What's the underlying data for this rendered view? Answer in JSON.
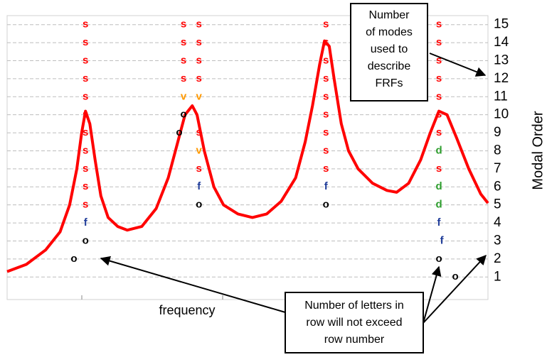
{
  "chart_data": {
    "type": "stabilization",
    "y_axis_label": "Modal Order",
    "x_axis_label": "frequency",
    "xlim": [
      0,
      100
    ],
    "ylim": [
      -0.25,
      15.5
    ],
    "yticks": [
      1,
      2,
      3,
      4,
      5,
      6,
      7,
      8,
      9,
      10,
      11,
      12,
      13,
      14,
      15
    ],
    "grid": true,
    "frf": {
      "color": "#ff0000",
      "x": [
        0,
        4,
        8,
        11,
        13,
        14.5,
        15.5,
        16.3,
        17.2,
        18.3,
        19.5,
        21,
        23,
        25,
        28,
        31,
        33.5,
        35.5,
        37,
        38.5,
        39.5,
        41,
        43,
        45,
        48,
        51,
        54,
        57,
        60,
        62,
        63.5,
        65,
        66,
        67,
        68,
        69.5,
        71,
        73,
        76,
        79,
        81,
        83.5,
        86,
        88,
        89.8,
        91.5,
        93.5,
        96,
        98.5,
        100
      ],
      "values": [
        1.3,
        1.7,
        2.5,
        3.5,
        5,
        7,
        9,
        10.2,
        9.5,
        7.5,
        5.5,
        4.3,
        3.8,
        3.6,
        3.8,
        4.8,
        6.5,
        8.5,
        10,
        10.5,
        10,
        8,
        6,
        5,
        4.5,
        4.3,
        4.5,
        5.2,
        6.5,
        8.5,
        10.5,
        12.8,
        14.1,
        13.8,
        12,
        9.5,
        8,
        7,
        6.2,
        5.8,
        5.7,
        6.2,
        7.5,
        9,
        10.2,
        10,
        8.7,
        7,
        5.6,
        5.1
      ]
    },
    "letter_colors": {
      "s": "#ff0000",
      "v": "#ff9900",
      "o": "#000000",
      "f": "#1f3c99",
      "d": "#2e9e2e"
    },
    "poles": [
      {
        "label": "s",
        "x": 16.3,
        "order": 15
      },
      {
        "label": "s",
        "x": 16.3,
        "order": 14
      },
      {
        "label": "s",
        "x": 16.3,
        "order": 13
      },
      {
        "label": "s",
        "x": 16.3,
        "order": 12
      },
      {
        "label": "s",
        "x": 16.3,
        "order": 11
      },
      {
        "label": "s",
        "x": 16.3,
        "order": 10
      },
      {
        "label": "s",
        "x": 16.3,
        "order": 9
      },
      {
        "label": "s",
        "x": 16.3,
        "order": 8
      },
      {
        "label": "s",
        "x": 16.3,
        "order": 7
      },
      {
        "label": "s",
        "x": 16.3,
        "order": 6
      },
      {
        "label": "s",
        "x": 16.3,
        "order": 5
      },
      {
        "label": "f",
        "x": 16.3,
        "order": 4
      },
      {
        "label": "o",
        "x": 16.3,
        "order": 3
      },
      {
        "label": "o",
        "x": 13.9,
        "order": 2
      },
      {
        "label": "s",
        "x": 36.7,
        "order": 15
      },
      {
        "label": "s",
        "x": 36.7,
        "order": 14
      },
      {
        "label": "s",
        "x": 36.7,
        "order": 13
      },
      {
        "label": "s",
        "x": 36.7,
        "order": 12
      },
      {
        "label": "v",
        "x": 36.7,
        "order": 11
      },
      {
        "label": "o",
        "x": 36.7,
        "order": 10
      },
      {
        "label": "o",
        "x": 35.8,
        "order": 9
      },
      {
        "label": "s",
        "x": 39.9,
        "order": 15
      },
      {
        "label": "s",
        "x": 39.9,
        "order": 14
      },
      {
        "label": "s",
        "x": 39.9,
        "order": 13
      },
      {
        "label": "s",
        "x": 39.9,
        "order": 12
      },
      {
        "label": "v",
        "x": 39.9,
        "order": 11
      },
      {
        "label": "s",
        "x": 39.9,
        "order": 9
      },
      {
        "label": "v",
        "x": 39.9,
        "order": 8
      },
      {
        "label": "s",
        "x": 39.9,
        "order": 7
      },
      {
        "label": "f",
        "x": 39.9,
        "order": 6
      },
      {
        "label": "o",
        "x": 39.9,
        "order": 5
      },
      {
        "label": "s",
        "x": 66.3,
        "order": 15
      },
      {
        "label": "s",
        "x": 66.3,
        "order": 14
      },
      {
        "label": "s",
        "x": 66.3,
        "order": 13
      },
      {
        "label": "s",
        "x": 66.3,
        "order": 12
      },
      {
        "label": "s",
        "x": 66.3,
        "order": 11
      },
      {
        "label": "s",
        "x": 66.3,
        "order": 10
      },
      {
        "label": "s",
        "x": 66.3,
        "order": 9
      },
      {
        "label": "s",
        "x": 66.3,
        "order": 8
      },
      {
        "label": "s",
        "x": 66.3,
        "order": 7
      },
      {
        "label": "f",
        "x": 66.3,
        "order": 6
      },
      {
        "label": "o",
        "x": 66.3,
        "order": 5
      },
      {
        "label": "s",
        "x": 89.8,
        "order": 15
      },
      {
        "label": "s",
        "x": 89.8,
        "order": 14
      },
      {
        "label": "s",
        "x": 89.8,
        "order": 13
      },
      {
        "label": "s",
        "x": 89.8,
        "order": 12
      },
      {
        "label": "s",
        "x": 89.8,
        "order": 11
      },
      {
        "label": "s",
        "x": 89.8,
        "order": 10
      },
      {
        "label": "s",
        "x": 89.8,
        "order": 9
      },
      {
        "label": "d",
        "x": 89.8,
        "order": 8
      },
      {
        "label": "s",
        "x": 89.8,
        "order": 7
      },
      {
        "label": "d",
        "x": 89.8,
        "order": 6
      },
      {
        "label": "d",
        "x": 89.8,
        "order": 5
      },
      {
        "label": "f",
        "x": 89.8,
        "order": 4
      },
      {
        "label": "f",
        "x": 90.4,
        "order": 3
      },
      {
        "label": "o",
        "x": 89.8,
        "order": 2
      },
      {
        "label": "o",
        "x": 93.2,
        "order": 1
      }
    ],
    "annotations": [
      {
        "lines": [
          "Number",
          "of modes",
          "used to",
          "describe",
          "FRFs"
        ]
      },
      {
        "lines": [
          "Number of letters in",
          "row will not exceed",
          "row number"
        ]
      }
    ]
  }
}
